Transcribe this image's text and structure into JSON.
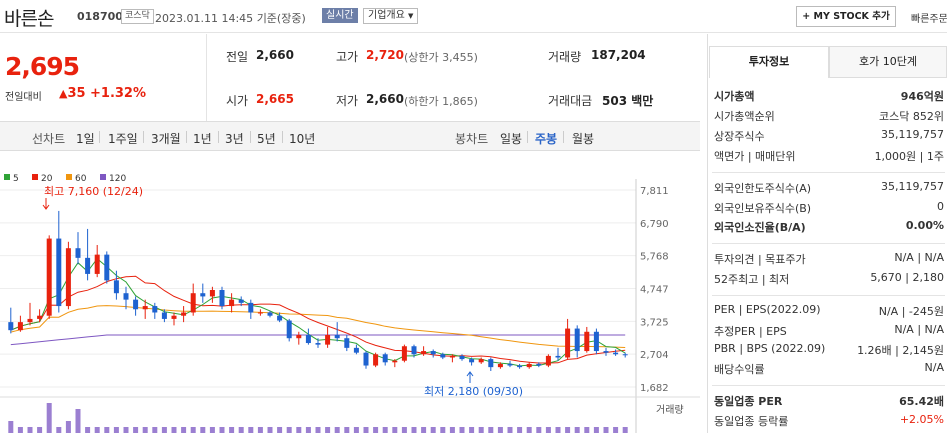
{
  "header": {
    "title": "바른손",
    "code": "018700",
    "market": "코스닥",
    "datetime": "2023.01.11 14:45",
    "basis": "기준(장중)",
    "live": "실시간",
    "company_info": "기업개요",
    "mystock": "+ MY STOCK 추가",
    "quick": "빠른주문"
  },
  "price": {
    "current": "2,695",
    "change_label": "전일대비",
    "change_icon": "▲",
    "change": "35",
    "percent": "+1.32%"
  },
  "summary": {
    "prev_label": "전일",
    "prev": "2,660",
    "high_label": "고가",
    "high": "2,720",
    "upper_limit": "(상한가 3,455)",
    "volume_label": "거래량",
    "volume": "187,204",
    "open_label": "시가",
    "open": "2,665",
    "low_label": "저가",
    "low": "2,660",
    "lower_limit": "(하한가 1,865)",
    "value_label": "거래대금",
    "value": "503 백만"
  },
  "chart_tabs": {
    "line_label": "선차트",
    "periods": [
      "1일",
      "1주일",
      "3개월",
      "1년",
      "3년",
      "5년",
      "10년"
    ],
    "candle_label": "봉차트",
    "candles": [
      "일봉",
      "주봉",
      "월봉"
    ],
    "selected": "주봉"
  },
  "legend": [
    {
      "label": "5",
      "color": "#2fa336"
    },
    {
      "label": "20",
      "color": "#e8220e"
    },
    {
      "label": "60",
      "color": "#f0960f"
    },
    {
      "label": "120",
      "color": "#7e57c2"
    }
  ],
  "chart_data": {
    "type": "candlestick",
    "y_ticks": [
      "7,811",
      "6,790",
      "5,768",
      "4,747",
      "3,725",
      "2,704",
      "1,682"
    ],
    "ylim": [
      1682,
      7811
    ],
    "high_note": "최고 7,160 (12/24)",
    "low_note": "최저 2,180 (09/30)",
    "volume_label": "거래량",
    "candles": [
      [
        3700,
        4150,
        3350,
        3450
      ],
      [
        3450,
        3900,
        3400,
        3700
      ],
      [
        3700,
        4300,
        3600,
        3800
      ],
      [
        3800,
        4100,
        3700,
        3900
      ],
      [
        3900,
        6400,
        3800,
        6300
      ],
      [
        6300,
        7160,
        4000,
        4200
      ],
      [
        4200,
        6200,
        4100,
        6000
      ],
      [
        6000,
        6500,
        5500,
        5700
      ],
      [
        5700,
        6600,
        5000,
        5200
      ],
      [
        5200,
        6100,
        5100,
        5800
      ],
      [
        5800,
        5900,
        4900,
        5000
      ],
      [
        5000,
        5300,
        4400,
        4600
      ],
      [
        4600,
        4800,
        4100,
        4400
      ],
      [
        4400,
        4500,
        3900,
        4100
      ],
      [
        4100,
        4400,
        3800,
        4200
      ],
      [
        4200,
        4300,
        3800,
        4000
      ],
      [
        4000,
        4100,
        3700,
        3800
      ],
      [
        3800,
        4000,
        3600,
        3900
      ],
      [
        3900,
        4200,
        3700,
        4000
      ],
      [
        4000,
        4900,
        3900,
        4600
      ],
      [
        4600,
        4900,
        4300,
        4500
      ],
      [
        4500,
        4800,
        4300,
        4700
      ],
      [
        4700,
        4800,
        4100,
        4200
      ],
      [
        4200,
        4600,
        4000,
        4400
      ],
      [
        4400,
        4500,
        4200,
        4300
      ],
      [
        4300,
        4400,
        3800,
        4000
      ],
      [
        4000,
        4100,
        3900,
        4000
      ],
      [
        4000,
        4050,
        3850,
        3900
      ],
      [
        3900,
        4000,
        3700,
        3750
      ],
      [
        3750,
        3800,
        3100,
        3200
      ],
      [
        3200,
        3400,
        3000,
        3300
      ],
      [
        3300,
        3500,
        3000,
        3050
      ],
      [
        3050,
        3200,
        2900,
        3000
      ],
      [
        3000,
        3550,
        2900,
        3300
      ],
      [
        3300,
        3700,
        3100,
        3200
      ],
      [
        3200,
        3300,
        2800,
        2900
      ],
      [
        2900,
        3000,
        2700,
        2750
      ],
      [
        2750,
        2800,
        2250,
        2350
      ],
      [
        2350,
        2750,
        2300,
        2700
      ],
      [
        2700,
        2750,
        2350,
        2450
      ],
      [
        2450,
        2550,
        2300,
        2500
      ],
      [
        2500,
        3000,
        2450,
        2950
      ],
      [
        2950,
        3000,
        2600,
        2700
      ],
      [
        2700,
        2950,
        2650,
        2800
      ],
      [
        2800,
        2850,
        2600,
        2700
      ],
      [
        2700,
        2750,
        2550,
        2600
      ],
      [
        2600,
        2700,
        2450,
        2650
      ],
      [
        2650,
        2700,
        2500,
        2550
      ],
      [
        2550,
        2600,
        2350,
        2450
      ],
      [
        2450,
        2600,
        2400,
        2550
      ],
      [
        2550,
        2600,
        2180,
        2300
      ],
      [
        2300,
        2450,
        2250,
        2400
      ],
      [
        2400,
        2500,
        2300,
        2350
      ],
      [
        2350,
        2400,
        2250,
        2300
      ],
      [
        2300,
        2450,
        2250,
        2400
      ],
      [
        2400,
        2450,
        2300,
        2350
      ],
      [
        2350,
        2700,
        2300,
        2650
      ],
      [
        2650,
        2900,
        2500,
        2600
      ],
      [
        2600,
        3800,
        2550,
        3500
      ],
      [
        3500,
        3600,
        2600,
        2800
      ],
      [
        2800,
        3550,
        2750,
        3400
      ],
      [
        3400,
        3500,
        2700,
        2800
      ],
      [
        2800,
        2900,
        2650,
        2750
      ],
      [
        2750,
        2850,
        2650,
        2700
      ],
      [
        2700,
        2750,
        2600,
        2695
      ]
    ],
    "volumes": [
      2,
      1,
      1,
      1,
      5,
      1,
      2,
      4,
      1,
      1,
      1,
      1,
      1,
      1,
      1,
      1,
      1,
      1,
      1,
      1,
      1,
      1,
      1,
      1,
      1,
      1,
      1,
      1,
      1,
      1,
      1,
      1,
      1,
      1,
      1,
      1,
      1,
      1,
      1,
      1,
      1,
      1,
      1,
      1,
      1,
      1,
      1,
      1,
      1,
      1,
      1,
      1,
      1,
      1,
      1,
      1,
      1,
      1,
      1,
      1,
      1,
      1,
      1,
      1,
      1
    ]
  },
  "invest": {
    "tab1": "투자정보",
    "tab2": "호가 10단계",
    "rows": [
      {
        "l": "시가총액",
        "r": "946억원",
        "bold": true
      },
      {
        "l": "시가총액순위",
        "r": "코스닥 852위"
      },
      {
        "l": "상장주식수",
        "r": "35,119,757"
      },
      {
        "l": "액면가 | 매매단위",
        "r": "1,000원 | 1주"
      },
      {
        "l": "외국인한도주식수(A)",
        "r": "35,119,757"
      },
      {
        "l": "외국인보유주식수(B)",
        "r": "0"
      },
      {
        "l": "외국인소진율(B/A)",
        "r": "0.00%",
        "bold": true
      },
      {
        "l": "투자의견 | 목표주가",
        "r": "N/A | N/A"
      },
      {
        "l": "52주최고 | 최저",
        "r": "5,670 | 2,180"
      },
      {
        "l": "PER | EPS(2022.09)",
        "r": "N/A | -245원"
      },
      {
        "l": "추정PER | EPS",
        "r": "N/A | N/A"
      },
      {
        "l": "PBR | BPS (2022.09)",
        "r": "1.26배 | 2,145원"
      },
      {
        "l": "배당수익률",
        "r": "N/A"
      },
      {
        "l": "동일업종 PER",
        "r": "65.42배",
        "bold": true
      },
      {
        "l": "동일업종 등락률",
        "r": "+2.05%",
        "red": true
      }
    ]
  }
}
